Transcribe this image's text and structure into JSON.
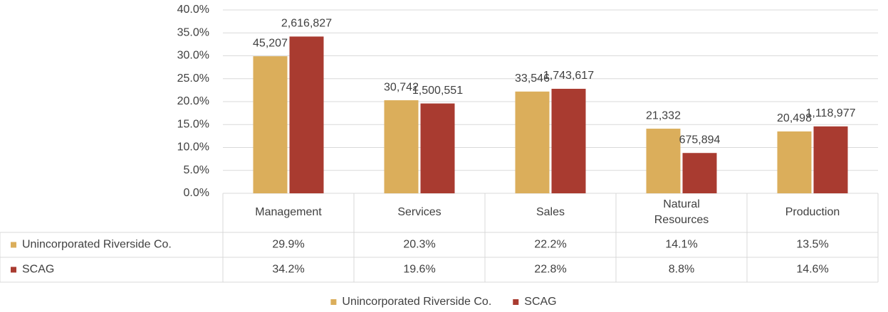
{
  "chart_data": {
    "type": "bar",
    "categories": [
      "Management",
      "Services",
      "Sales",
      "Natural Resources",
      "Production"
    ],
    "series": [
      {
        "name": "Unincorporated Riverside Co.",
        "color": "#dbae5b",
        "values": [
          29.9,
          20.3,
          22.2,
          14.1,
          13.5
        ],
        "value_labels": [
          "29.9%",
          "20.3%",
          "22.2%",
          "14.1%",
          "13.5%"
        ],
        "data_labels": [
          "45,207",
          "30,742",
          "33,546",
          "21,332",
          "20,498"
        ]
      },
      {
        "name": "SCAG",
        "color": "#a93b30",
        "values": [
          34.2,
          19.6,
          22.8,
          8.8,
          14.6
        ],
        "value_labels": [
          "34.2%",
          "19.6%",
          "22.8%",
          "8.8%",
          "14.6%"
        ],
        "data_labels": [
          "2,616,827",
          "1,500,551",
          "1,743,617",
          "675,894",
          "1,118,977"
        ]
      }
    ],
    "ylim": [
      0,
      40
    ],
    "yticks": [
      {
        "value": 0,
        "label": "0.0%"
      },
      {
        "value": 5,
        "label": "5.0%"
      },
      {
        "value": 10,
        "label": "10.0%"
      },
      {
        "value": 15,
        "label": "15.0%"
      },
      {
        "value": 20,
        "label": "20.0%"
      },
      {
        "value": 25,
        "label": "25.0%"
      },
      {
        "value": 30,
        "label": "30.0%"
      },
      {
        "value": 35,
        "label": "35.0%"
      },
      {
        "value": 40,
        "label": "40.0%"
      }
    ],
    "grid": true,
    "legend": "bottom"
  }
}
